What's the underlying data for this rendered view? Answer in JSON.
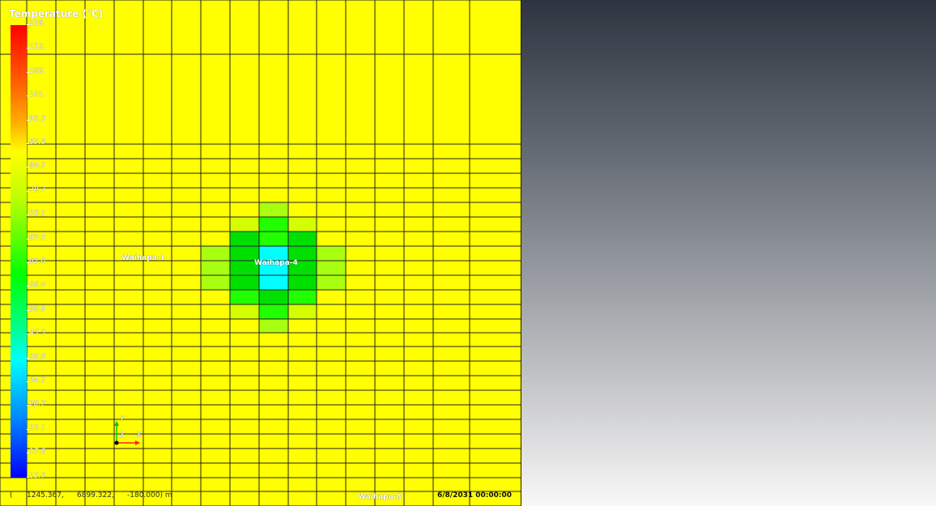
{
  "colorbar": {
    "title": "Temperature (°C)",
    "ticks": [
      "118.",
      "112.",
      "106.",
      "101.",
      "95.3",
      "89.8",
      "84.2",
      "78.7",
      "73.1",
      "67.5",
      "62.0",
      "56.4",
      "50.9",
      "45.3",
      "39.8",
      "34.2",
      "28.7",
      "23.1",
      "17.6",
      "12.0"
    ]
  },
  "wells": {
    "w1": "Waihapa-1",
    "w4": "Waihapa-4",
    "w8": "Waihapa-8"
  },
  "axes": {
    "y": "Y",
    "z": "Z",
    "x": "X"
  },
  "status": {
    "coord_open": "(",
    "x": "1245.367,",
    "y": "6899.322,",
    "z": "-180.000) m",
    "timestamp": "6/8/2031 00:00:00"
  },
  "colors": {
    "background_cell": "#ffff00",
    "center_cell": "#00ffff",
    "ring1": "#00e000",
    "ring2": "#22ff00",
    "ring3": "#a8ff10",
    "ring4": "#d4ff00"
  }
}
